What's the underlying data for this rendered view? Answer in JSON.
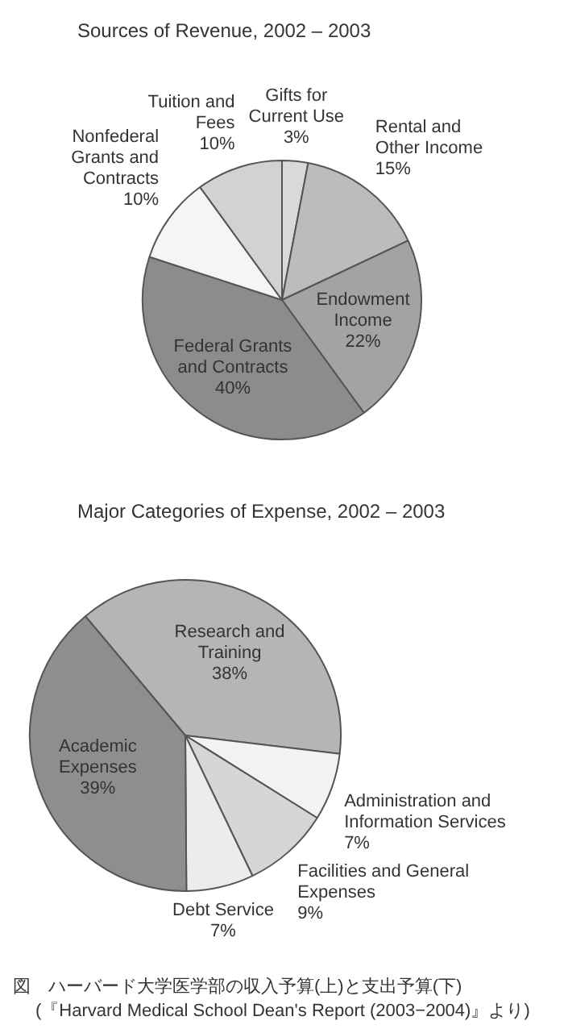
{
  "chart_data": [
    {
      "type": "pie",
      "title": "Sources of Revenue, 2002 – 2003",
      "categories": [
        "Gifts for Current Use",
        "Rental and Other Income",
        "Endowment Income",
        "Federal Grants and Contracts",
        "Nonfederal Grants and Contracts",
        "Tuition and Fees"
      ],
      "values": [
        3,
        15,
        22,
        40,
        10,
        10
      ],
      "value_labels": [
        "3%",
        "15%",
        "22%",
        "40%",
        "10%",
        "10%"
      ],
      "colors": [
        "#d9d9d9",
        "#bcbcbc",
        "#a3a3a3",
        "#8c8c8c",
        "#f5f5f5",
        "#d2d2d2"
      ],
      "legend": false
    },
    {
      "type": "pie",
      "title": "Major Categories of Expense, 2002 – 2003",
      "categories": [
        "Research and Training",
        "Administration and Information Services",
        "Facilities and General Expenses",
        "Debt Service",
        "Academic Expenses"
      ],
      "values": [
        38,
        7,
        9,
        7,
        39
      ],
      "value_labels": [
        "38%",
        "7%",
        "9%",
        "7%",
        "39%"
      ],
      "colors": [
        "#b5b5b5",
        "#f2f2f2",
        "#d6d6d6",
        "#ececec",
        "#8e8e8e"
      ],
      "legend": false,
      "annotations": [
        "図　ハーバード大学医学部の収入予算(上)と支出予算(下)",
        "(『Harvard Medical School Dean's Report (2003−2004)』より)"
      ]
    }
  ]
}
